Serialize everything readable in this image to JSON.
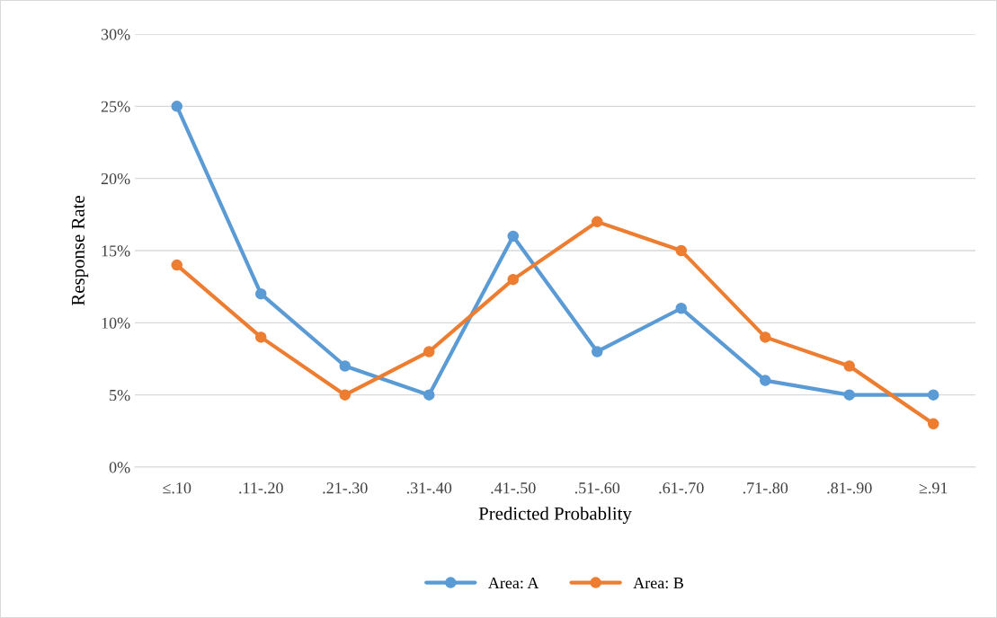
{
  "chart_data": {
    "type": "line",
    "xlabel": "Predicted Probablity",
    "ylabel": "Response Rate",
    "categories": [
      "≤.10",
      ".11-.20",
      ".21-.30",
      ".31-.40",
      ".41-.50",
      ".51-.60",
      ".61-.70",
      ".71-.80",
      ".81-.90",
      "≥.91"
    ],
    "series": [
      {
        "name": "Area: A",
        "color": "#5b9bd5",
        "values": [
          25,
          12,
          7,
          5,
          16,
          8,
          11,
          6,
          5,
          5
        ]
      },
      {
        "name": "Area: B",
        "color": "#ed7d31",
        "values": [
          14,
          9,
          5,
          8,
          13,
          17,
          15,
          9,
          7,
          3
        ]
      }
    ],
    "ylim": [
      0,
      30
    ],
    "yticks": [
      {
        "value": 0,
        "label": "0%"
      },
      {
        "value": 5,
        "label": "5%"
      },
      {
        "value": 10,
        "label": "10%"
      },
      {
        "value": 15,
        "label": "15%"
      },
      {
        "value": 20,
        "label": "20%"
      },
      {
        "value": 25,
        "label": "25%"
      },
      {
        "value": 30,
        "label": "30%"
      }
    ],
    "grid": "y",
    "legend": "bottom",
    "marker": "circle",
    "line_style": "solid"
  }
}
